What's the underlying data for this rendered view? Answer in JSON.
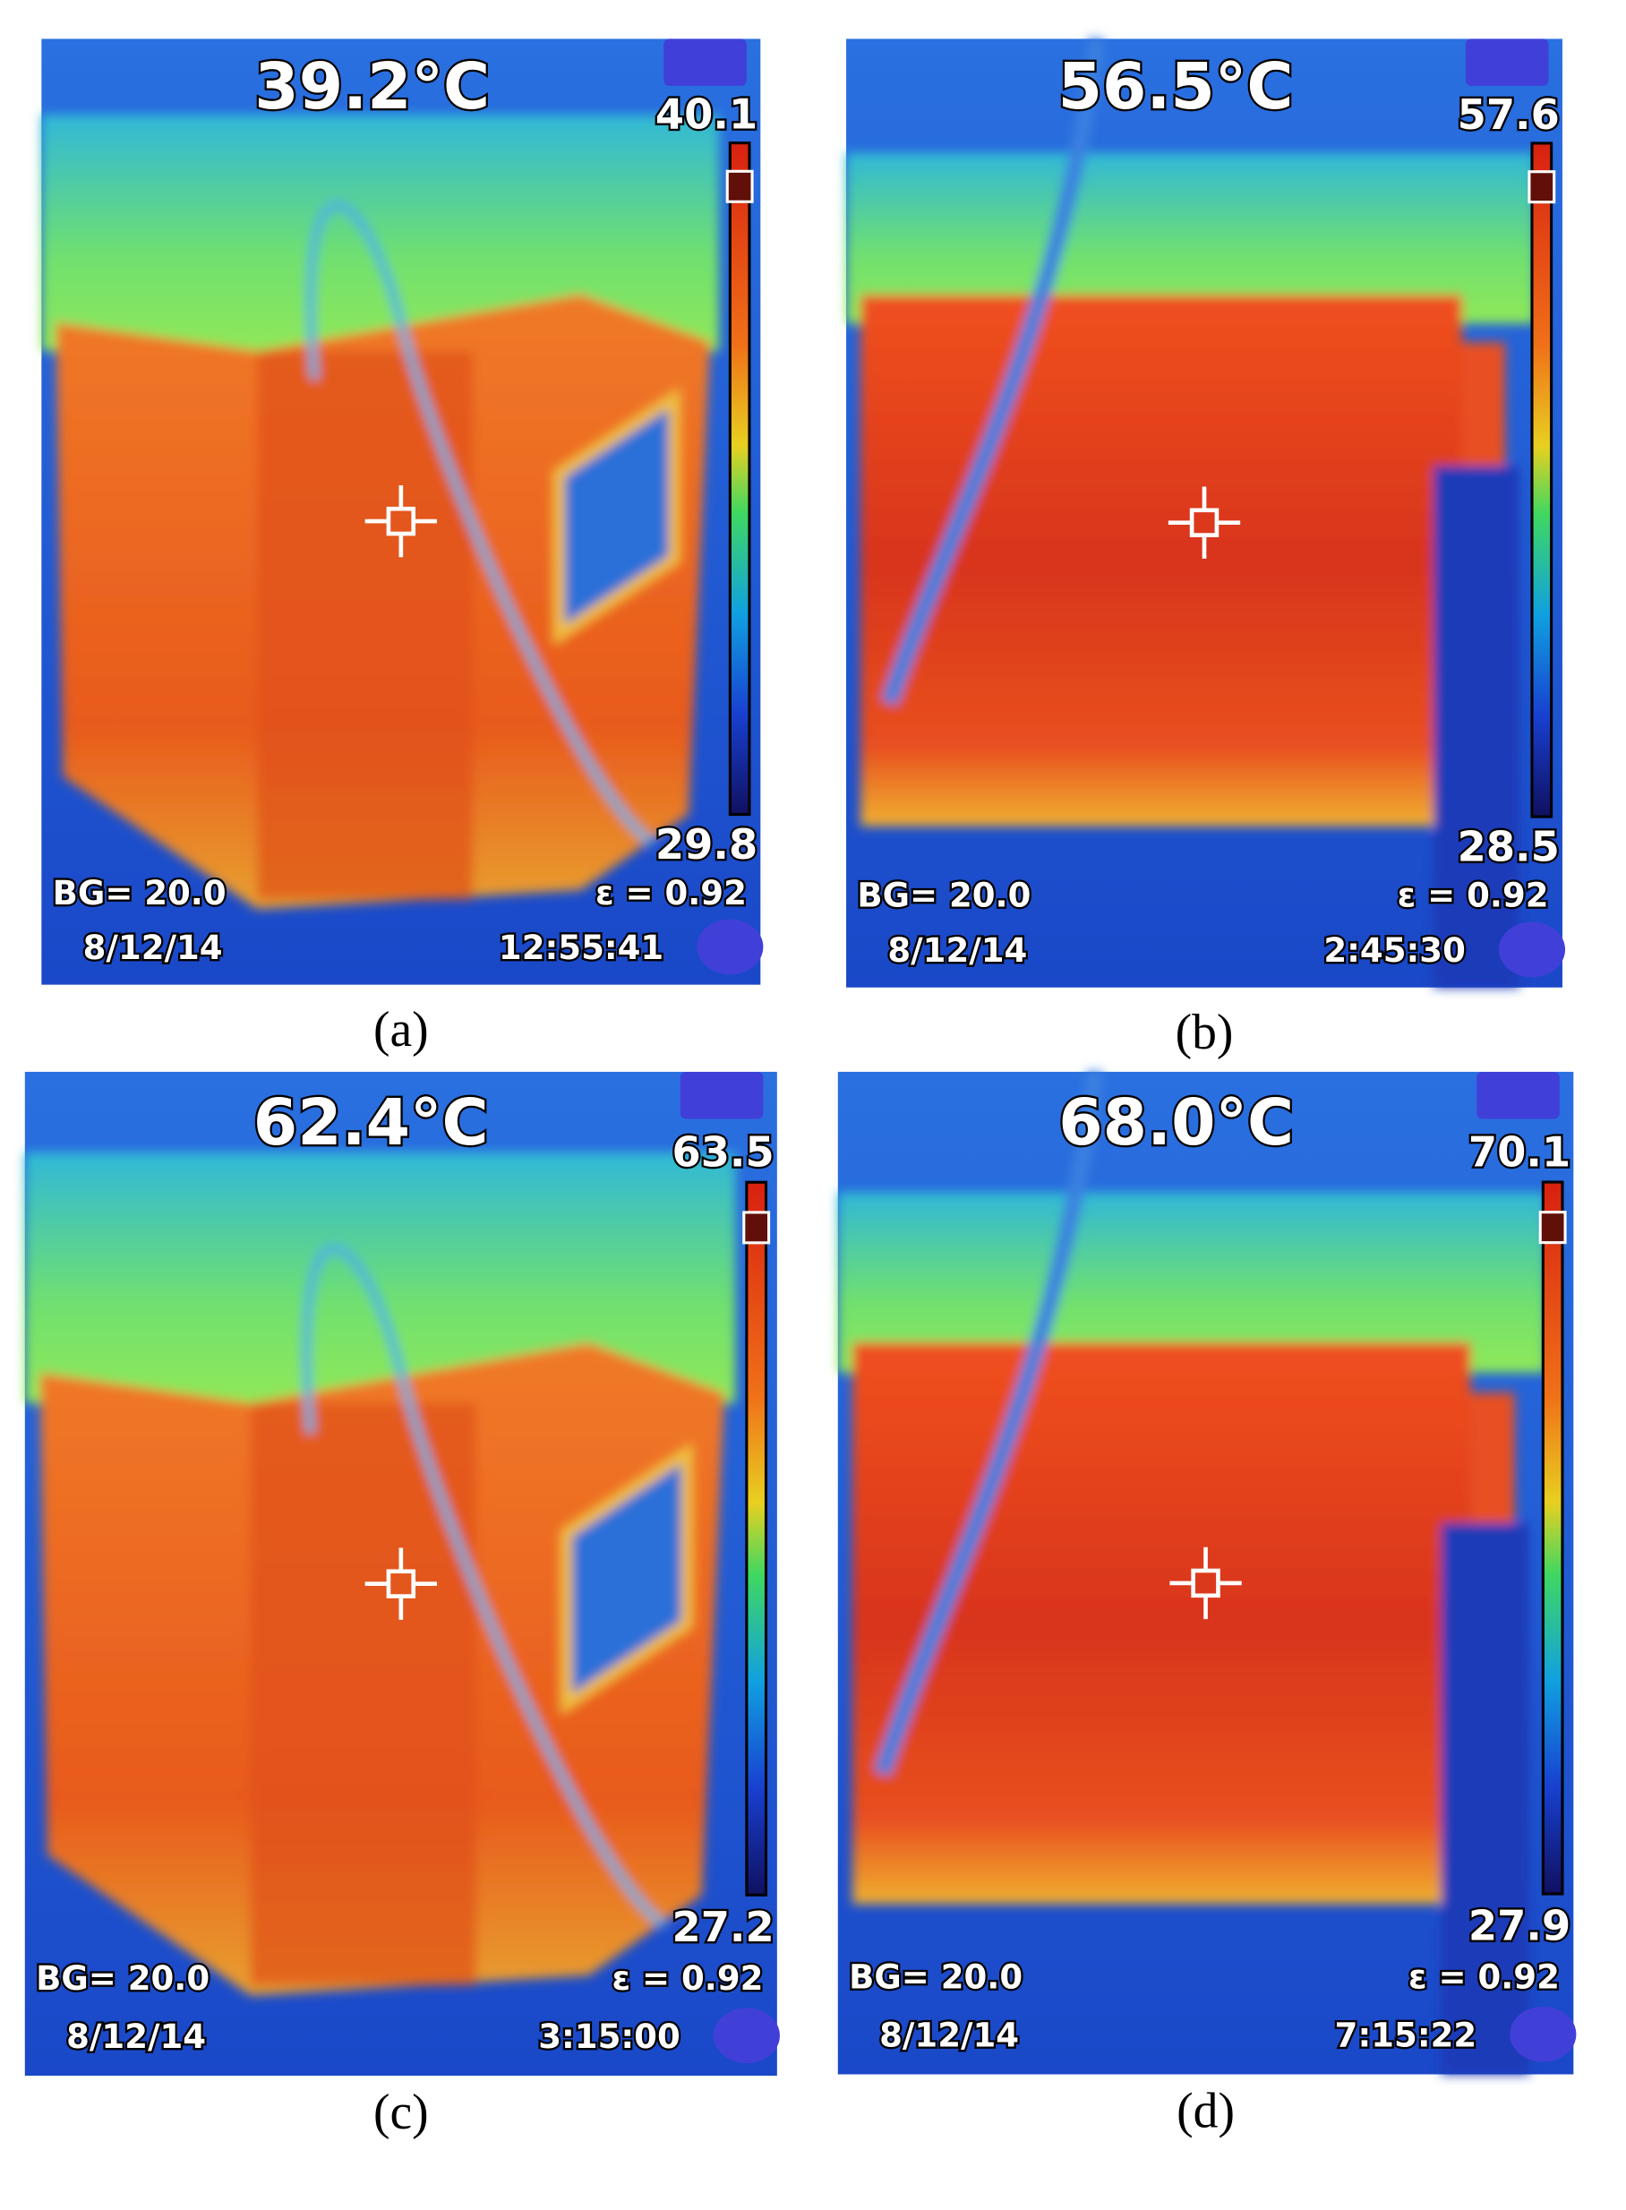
{
  "panels": [
    {
      "caption": "(a)",
      "reading": "39.2°C",
      "scale_max": "40.1",
      "scale_min": "29.8",
      "background": "BG= 20.0",
      "emissivity": "ε = 0.92",
      "date": "8/12/14",
      "time": "12:55:41"
    },
    {
      "caption": "(b)",
      "reading": "56.5°C",
      "scale_max": "57.6",
      "scale_min": "28.5",
      "background": "BG= 20.0",
      "emissivity": "ε = 0.92",
      "date": "8/12/14",
      "time": "2:45:30"
    },
    {
      "caption": "(c)",
      "reading": "62.4°C",
      "scale_max": "63.5",
      "scale_min": "27.2",
      "background": "BG= 20.0",
      "emissivity": "ε = 0.92",
      "date": "8/12/14",
      "time": "3:15:00"
    },
    {
      "caption": "(d)",
      "reading": "68.0°C",
      "scale_max": "70.1",
      "scale_min": "27.9",
      "background": "BG= 20.0",
      "emissivity": "ε = 0.92",
      "date": "8/12/14",
      "time": "7:15:22"
    }
  ]
}
